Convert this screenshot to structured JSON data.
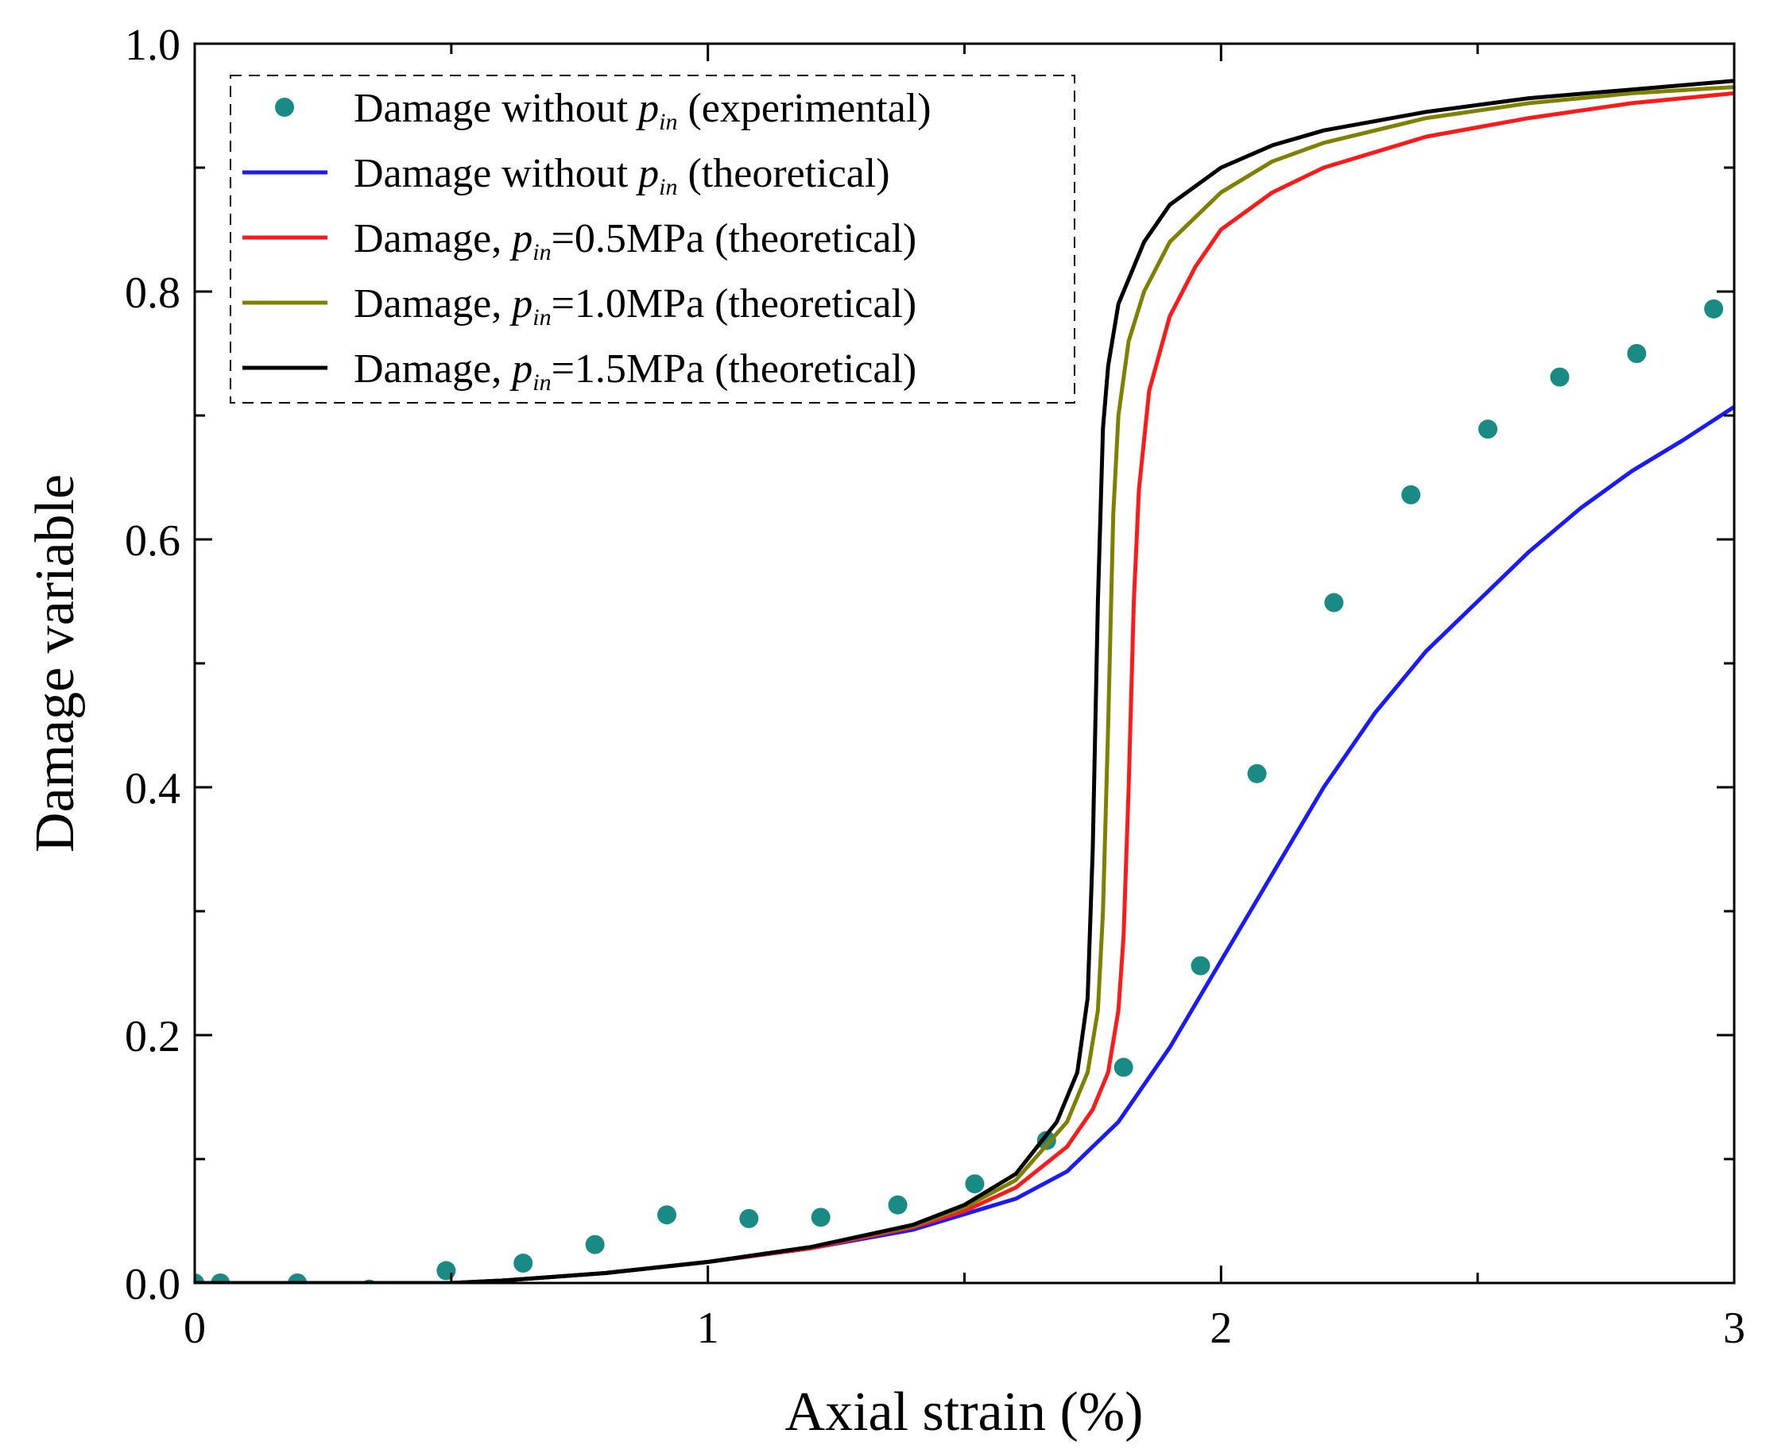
{
  "chart_data": {
    "type": "line",
    "title": "",
    "xlabel": "Axial strain (%)",
    "ylabel": "Damage variable",
    "xlim": [
      0,
      3
    ],
    "ylim": [
      0,
      1.0
    ],
    "xticks": [
      0,
      1,
      2,
      3
    ],
    "xtick_labels": [
      "0",
      "1",
      "2",
      "3"
    ],
    "yticks": [
      0.0,
      0.2,
      0.4,
      0.6,
      0.8,
      1.0
    ],
    "ytick_labels": [
      "0.0",
      "0.2",
      "0.4",
      "0.6",
      "0.8",
      "1.0"
    ],
    "legend_position": "top-left",
    "grid": false,
    "series": [
      {
        "name": "Damage without p_in (experimental)",
        "legend": {
          "prefix": "Damage without ",
          "p": "p",
          "sub": "in",
          "suffix": " (experimental)"
        },
        "kind": "scatter",
        "color": "#1a8a84",
        "x": [
          0.0,
          0.05,
          0.2,
          0.34,
          0.49,
          0.64,
          0.78,
          0.92,
          1.08,
          1.22,
          1.37,
          1.52,
          1.66,
          1.81,
          1.96,
          2.07,
          2.22,
          2.37,
          2.52,
          2.66,
          2.81,
          2.96
        ],
        "y": [
          0.0,
          0.0,
          0.0,
          -0.005,
          0.01,
          0.016,
          0.031,
          0.055,
          0.052,
          0.053,
          0.063,
          0.08,
          0.115,
          0.174,
          0.256,
          0.411,
          0.549,
          0.636,
          0.689,
          0.731,
          0.75,
          0.786
        ]
      },
      {
        "name": "Damage without p_in (theoretical)",
        "legend": {
          "prefix": "Damage without ",
          "p": "p",
          "sub": "in",
          "suffix": " (theoretical)"
        },
        "kind": "line",
        "color": "#1a1aff",
        "x": [
          0,
          0.5,
          0.6,
          0.8,
          1.0,
          1.2,
          1.4,
          1.6,
          1.7,
          1.8,
          1.9,
          2.0,
          2.1,
          2.2,
          2.3,
          2.4,
          2.5,
          2.6,
          2.7,
          2.8,
          2.9,
          3.0
        ],
        "y": [
          0,
          0.0,
          0.002,
          0.008,
          0.017,
          0.028,
          0.043,
          0.068,
          0.09,
          0.13,
          0.19,
          0.26,
          0.33,
          0.4,
          0.46,
          0.51,
          0.55,
          0.59,
          0.625,
          0.655,
          0.68,
          0.707
        ]
      },
      {
        "name": "Damage, p_in=0.5MPa (theoretical)",
        "legend": {
          "prefix": "Damage, ",
          "p": "p",
          "sub": "in",
          "suffix": "=0.5MPa (theoretical)"
        },
        "kind": "line",
        "color": "#ff1a1a",
        "x": [
          0,
          0.5,
          0.6,
          0.8,
          1.0,
          1.2,
          1.4,
          1.5,
          1.6,
          1.7,
          1.75,
          1.78,
          1.8,
          1.81,
          1.82,
          1.83,
          1.84,
          1.86,
          1.9,
          1.95,
          2.0,
          2.1,
          2.2,
          2.4,
          2.6,
          2.8,
          3.0
        ],
        "y": [
          0,
          0.0,
          0.002,
          0.008,
          0.017,
          0.028,
          0.045,
          0.058,
          0.077,
          0.11,
          0.14,
          0.17,
          0.22,
          0.28,
          0.4,
          0.55,
          0.64,
          0.72,
          0.78,
          0.82,
          0.85,
          0.88,
          0.9,
          0.925,
          0.94,
          0.952,
          0.96
        ]
      },
      {
        "name": "Damage, p_in=1.0MPa (theoretical)",
        "legend": {
          "prefix": "Damage, ",
          "p": "p",
          "sub": "in",
          "suffix": "=1.0MPa (theoretical)"
        },
        "kind": "line",
        "color": "#808000",
        "x": [
          0,
          0.5,
          0.6,
          0.8,
          1.0,
          1.2,
          1.4,
          1.5,
          1.6,
          1.7,
          1.74,
          1.76,
          1.77,
          1.78,
          1.79,
          1.8,
          1.82,
          1.85,
          1.9,
          2.0,
          2.1,
          2.2,
          2.4,
          2.6,
          2.8,
          3.0
        ],
        "y": [
          0,
          0.0,
          0.002,
          0.008,
          0.017,
          0.029,
          0.046,
          0.061,
          0.083,
          0.13,
          0.17,
          0.22,
          0.3,
          0.45,
          0.62,
          0.7,
          0.76,
          0.8,
          0.84,
          0.88,
          0.905,
          0.92,
          0.94,
          0.952,
          0.96,
          0.965
        ]
      },
      {
        "name": "Damage, p_in=1.5MPa (theoretical)",
        "legend": {
          "prefix": "Damage, ",
          "p": "p",
          "sub": "in",
          "suffix": "=1.5MPa (theoretical)"
        },
        "kind": "line",
        "color": "#000000",
        "x": [
          0,
          0.5,
          0.6,
          0.8,
          1.0,
          1.2,
          1.4,
          1.5,
          1.6,
          1.68,
          1.72,
          1.74,
          1.75,
          1.76,
          1.77,
          1.78,
          1.8,
          1.85,
          1.9,
          2.0,
          2.1,
          2.2,
          2.4,
          2.6,
          2.8,
          3.0
        ],
        "y": [
          0,
          0.0,
          0.002,
          0.008,
          0.017,
          0.029,
          0.047,
          0.063,
          0.088,
          0.13,
          0.17,
          0.23,
          0.35,
          0.55,
          0.69,
          0.74,
          0.79,
          0.84,
          0.87,
          0.9,
          0.918,
          0.93,
          0.945,
          0.956,
          0.963,
          0.97
        ]
      }
    ]
  }
}
